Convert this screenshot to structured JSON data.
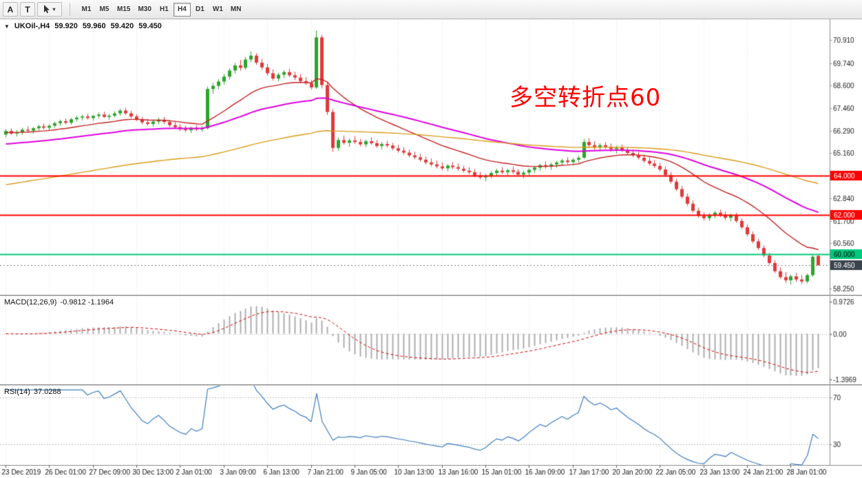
{
  "toolbar": {
    "tools": [
      {
        "id": "arrow",
        "label": "A"
      },
      {
        "id": "text",
        "label": "T"
      },
      {
        "id": "cursor",
        "label": ""
      }
    ],
    "timeframes": [
      "M1",
      "M5",
      "M15",
      "M30",
      "H1",
      "H4",
      "D1",
      "W1",
      "MN"
    ],
    "active_timeframe": "H4"
  },
  "chart": {
    "symbol": "UKOil-,H4",
    "ohlc": {
      "open": "59.920",
      "high": "59.960",
      "low": "59.420",
      "close": "59.450"
    },
    "annotation": "多空转折点60",
    "colors": {
      "bull": "#2CA52C",
      "bear": "#E03A3A",
      "ma_fast": "#C02020",
      "ma_mid": "#DD00DD",
      "ma_slow": "#D89B18",
      "grid": "#E3E3E3",
      "axis_text": "#1A1A1A",
      "current_line": "#777777"
    },
    "price_axis": {
      "range": [
        57.94,
        71.97
      ],
      "labels": [
        "70.910",
        "69.740",
        "68.600",
        "67.460",
        "66.290",
        "65.160",
        "62.840",
        "61.700",
        "60.560",
        "58.250"
      ],
      "hlines": [
        {
          "value": 64.0,
          "label": "64.000",
          "color": "#FF0000",
          "text": "#FFFFFF"
        },
        {
          "value": 62.0,
          "label": "62.000",
          "color": "#FF0000",
          "text": "#FFFFFF"
        },
        {
          "value": 60.0,
          "label": "60.000",
          "color": "#00C87D",
          "text": "#000000"
        }
      ],
      "current": {
        "value": 59.45,
        "label": "59.450",
        "color": "#39434E",
        "text": "#FFFFFF"
      }
    }
  },
  "chart_data": {
    "type": "candlestick",
    "symbol": "UKOil-",
    "timeframe": "H4",
    "title": "UKOil- H4 candlestick chart with MACD(12,26,9) and RSI(14) subwindows",
    "y_range": [
      57.94,
      71.97
    ],
    "moving_averages": [
      {
        "name": "fast-ma",
        "period": 21,
        "seed": 66.2,
        "color_key": "ma_fast",
        "width": 1.4
      },
      {
        "name": "mid-ma",
        "period": 55,
        "seed": 65.6,
        "color_key": "ma_mid",
        "width": 2
      },
      {
        "name": "slow-ma",
        "period": 120,
        "seed": 63.5,
        "color_key": "ma_slow",
        "width": 1.4
      }
    ],
    "candles": [
      [
        66.1,
        66.38,
        65.95,
        66.28
      ],
      [
        66.28,
        66.42,
        66.08,
        66.15
      ],
      [
        66.15,
        66.32,
        66.0,
        66.22
      ],
      [
        66.22,
        66.45,
        66.1,
        66.35
      ],
      [
        66.35,
        66.52,
        66.2,
        66.3
      ],
      [
        66.3,
        66.48,
        66.15,
        66.42
      ],
      [
        66.42,
        66.6,
        66.3,
        66.52
      ],
      [
        66.52,
        66.66,
        66.35,
        66.45
      ],
      [
        66.45,
        66.62,
        66.32,
        66.55
      ],
      [
        66.55,
        66.76,
        66.44,
        66.68
      ],
      [
        66.68,
        66.86,
        66.55,
        66.78
      ],
      [
        66.78,
        66.92,
        66.62,
        66.7
      ],
      [
        66.7,
        66.95,
        66.6,
        66.88
      ],
      [
        66.88,
        67.06,
        66.76,
        66.96
      ],
      [
        66.96,
        67.12,
        66.82,
        67.02
      ],
      [
        67.02,
        67.16,
        66.86,
        66.94
      ],
      [
        66.94,
        67.1,
        66.8,
        67.05
      ],
      [
        67.05,
        67.22,
        66.92,
        67.12
      ],
      [
        67.12,
        67.26,
        66.95,
        67.0
      ],
      [
        67.0,
        67.15,
        66.85,
        67.06
      ],
      [
        67.06,
        67.28,
        66.96,
        67.18
      ],
      [
        67.18,
        67.42,
        67.06,
        67.32
      ],
      [
        67.32,
        67.46,
        67.1,
        67.18
      ],
      [
        67.18,
        67.32,
        66.94,
        67.02
      ],
      [
        67.02,
        67.14,
        66.78,
        66.88
      ],
      [
        66.88,
        67.0,
        66.62,
        66.72
      ],
      [
        66.72,
        66.9,
        66.55,
        66.64
      ],
      [
        66.64,
        66.86,
        66.5,
        66.76
      ],
      [
        66.76,
        66.96,
        66.62,
        66.86
      ],
      [
        66.86,
        67.0,
        66.64,
        66.74
      ],
      [
        66.74,
        66.85,
        66.48,
        66.58
      ],
      [
        66.58,
        66.74,
        66.38,
        66.48
      ],
      [
        66.48,
        66.64,
        66.28,
        66.38
      ],
      [
        66.38,
        66.55,
        66.22,
        66.32
      ],
      [
        66.32,
        66.5,
        66.18,
        66.44
      ],
      [
        66.44,
        66.58,
        66.28,
        66.36
      ],
      [
        66.36,
        66.54,
        66.24,
        66.42
      ],
      [
        66.42,
        68.55,
        66.36,
        68.42
      ],
      [
        68.42,
        68.72,
        68.18,
        68.58
      ],
      [
        68.58,
        68.92,
        68.4,
        68.8
      ],
      [
        68.8,
        69.18,
        68.64,
        69.05
      ],
      [
        69.05,
        69.48,
        68.9,
        69.36
      ],
      [
        69.36,
        69.74,
        69.2,
        69.62
      ],
      [
        69.62,
        69.9,
        69.35,
        69.5
      ],
      [
        69.5,
        70.05,
        69.4,
        69.92
      ],
      [
        69.92,
        70.34,
        69.78,
        70.12
      ],
      [
        70.12,
        70.25,
        69.65,
        69.76
      ],
      [
        69.76,
        69.95,
        69.4,
        69.52
      ],
      [
        69.52,
        69.7,
        69.1,
        69.22
      ],
      [
        69.22,
        69.42,
        68.85,
        68.95
      ],
      [
        68.95,
        69.25,
        68.8,
        69.15
      ],
      [
        69.15,
        69.38,
        68.98,
        69.28
      ],
      [
        69.28,
        69.45,
        69.02,
        69.12
      ],
      [
        69.12,
        69.3,
        68.88,
        69.0
      ],
      [
        69.0,
        69.18,
        68.72,
        68.82
      ],
      [
        68.82,
        69.02,
        68.62,
        68.72
      ],
      [
        68.72,
        68.88,
        68.4,
        68.5
      ],
      [
        68.5,
        71.4,
        68.42,
        71.05
      ],
      [
        71.05,
        71.18,
        68.45,
        68.62
      ],
      [
        68.62,
        68.8,
        67.1,
        67.25
      ],
      [
        67.25,
        67.4,
        65.22,
        65.42
      ],
      [
        65.42,
        65.95,
        65.28,
        65.82
      ],
      [
        65.82,
        66.05,
        65.58,
        65.68
      ],
      [
        65.68,
        65.9,
        65.48,
        65.8
      ],
      [
        65.8,
        66.02,
        65.62,
        65.72
      ],
      [
        65.72,
        65.88,
        65.5,
        65.6
      ],
      [
        65.6,
        65.85,
        65.45,
        65.76
      ],
      [
        65.76,
        65.95,
        65.58,
        65.66
      ],
      [
        65.66,
        65.82,
        65.42,
        65.52
      ],
      [
        65.52,
        65.72,
        65.34,
        65.62
      ],
      [
        65.62,
        65.78,
        65.44,
        65.54
      ],
      [
        65.54,
        65.68,
        65.3,
        65.4
      ],
      [
        65.4,
        65.58,
        65.18,
        65.28
      ],
      [
        65.28,
        65.46,
        65.08,
        65.18
      ],
      [
        65.18,
        65.34,
        64.94,
        65.04
      ],
      [
        65.04,
        65.22,
        64.84,
        64.94
      ],
      [
        64.94,
        65.12,
        64.72,
        64.82
      ],
      [
        64.82,
        64.98,
        64.58,
        64.68
      ],
      [
        64.68,
        64.88,
        64.48,
        64.58
      ],
      [
        64.58,
        64.78,
        64.38,
        64.48
      ],
      [
        64.48,
        64.68,
        64.28,
        64.38
      ],
      [
        64.38,
        64.6,
        64.22,
        64.52
      ],
      [
        64.52,
        64.7,
        64.34,
        64.44
      ],
      [
        64.44,
        64.62,
        64.26,
        64.36
      ],
      [
        64.36,
        64.52,
        64.16,
        64.26
      ],
      [
        64.26,
        64.44,
        64.08,
        64.18
      ],
      [
        64.18,
        64.34,
        63.92,
        64.02
      ],
      [
        64.02,
        64.2,
        63.82,
        63.92
      ],
      [
        63.92,
        64.1,
        63.72,
        64.0
      ],
      [
        64.0,
        64.24,
        63.88,
        64.14
      ],
      [
        64.14,
        64.36,
        64.0,
        64.26
      ],
      [
        64.26,
        64.44,
        64.08,
        64.18
      ],
      [
        64.18,
        64.36,
        63.98,
        64.28
      ],
      [
        64.28,
        64.46,
        64.1,
        64.2
      ],
      [
        64.2,
        64.34,
        63.96,
        64.06
      ],
      [
        64.06,
        64.26,
        63.88,
        64.16
      ],
      [
        64.16,
        64.38,
        64.02,
        64.3
      ],
      [
        64.3,
        64.5,
        64.14,
        64.42
      ],
      [
        64.42,
        64.62,
        64.26,
        64.54
      ],
      [
        64.54,
        64.72,
        64.36,
        64.46
      ],
      [
        64.46,
        64.66,
        64.3,
        64.58
      ],
      [
        64.58,
        64.76,
        64.4,
        64.68
      ],
      [
        64.68,
        64.88,
        64.52,
        64.78
      ],
      [
        64.78,
        64.94,
        64.58,
        64.7
      ],
      [
        64.7,
        64.9,
        64.54,
        64.82
      ],
      [
        64.82,
        65.02,
        64.66,
        64.92
      ],
      [
        64.92,
        65.88,
        64.86,
        65.72
      ],
      [
        65.72,
        65.92,
        65.42,
        65.56
      ],
      [
        65.56,
        65.76,
        65.32,
        65.46
      ],
      [
        65.46,
        65.66,
        65.26,
        65.56
      ],
      [
        65.56,
        65.72,
        65.36,
        65.48
      ],
      [
        65.48,
        65.64,
        65.24,
        65.36
      ],
      [
        65.36,
        65.54,
        65.14,
        65.44
      ],
      [
        65.44,
        65.6,
        65.2,
        65.3
      ],
      [
        65.3,
        65.46,
        65.06,
        65.16
      ],
      [
        65.16,
        65.34,
        64.94,
        65.04
      ],
      [
        65.04,
        65.22,
        64.82,
        64.92
      ],
      [
        64.92,
        65.08,
        64.66,
        64.76
      ],
      [
        64.76,
        64.94,
        64.52,
        64.62
      ],
      [
        64.62,
        64.8,
        64.4,
        64.5
      ],
      [
        64.5,
        64.66,
        64.22,
        64.32
      ],
      [
        64.32,
        64.48,
        63.94,
        64.04
      ],
      [
        64.04,
        64.2,
        63.6,
        63.7
      ],
      [
        63.7,
        63.86,
        63.22,
        63.32
      ],
      [
        63.32,
        63.48,
        62.84,
        62.94
      ],
      [
        62.94,
        63.1,
        62.48,
        62.58
      ],
      [
        62.58,
        62.74,
        62.12,
        62.22
      ],
      [
        62.22,
        62.38,
        61.86,
        61.96
      ],
      [
        61.96,
        62.14,
        61.72,
        61.84
      ],
      [
        61.84,
        62.1,
        61.7,
        62.0
      ],
      [
        62.0,
        62.22,
        61.84,
        62.12
      ],
      [
        62.12,
        62.28,
        61.9,
        62.02
      ],
      [
        62.02,
        62.18,
        61.74,
        61.86
      ],
      [
        61.86,
        62.08,
        61.68,
        61.98
      ],
      [
        61.98,
        62.12,
        61.6,
        61.7
      ],
      [
        61.7,
        61.84,
        61.28,
        61.38
      ],
      [
        61.38,
        61.52,
        60.92,
        61.02
      ],
      [
        61.02,
        61.16,
        60.56,
        60.66
      ],
      [
        60.66,
        60.8,
        60.22,
        60.32
      ],
      [
        60.32,
        60.46,
        59.84,
        59.94
      ],
      [
        59.94,
        60.08,
        59.46,
        59.56
      ],
      [
        59.56,
        59.7,
        59.04,
        59.14
      ],
      [
        59.14,
        59.34,
        58.74,
        58.84
      ],
      [
        58.84,
        59.1,
        58.54,
        58.68
      ],
      [
        58.68,
        58.96,
        58.46,
        58.88
      ],
      [
        58.88,
        59.06,
        58.6,
        58.72
      ],
      [
        58.72,
        58.94,
        58.48,
        58.62
      ],
      [
        58.62,
        59.02,
        58.52,
        58.94
      ],
      [
        58.94,
        59.96,
        58.86,
        59.88
      ],
      [
        59.92,
        59.96,
        59.42,
        59.45
      ]
    ]
  },
  "macd": {
    "name": "MACD(12,26,9)",
    "values": "-0.9812 -1.1964",
    "params": {
      "fast": 12,
      "slow": 26,
      "signal": 9
    },
    "axis_labels": [
      {
        "value": 0.9726,
        "label": "0.9726"
      },
      {
        "value": 0,
        "label": "0.00"
      },
      {
        "value": -1.3969,
        "label": "-1.3969"
      }
    ],
    "range": [
      1.15,
      -1.55
    ],
    "colors": {
      "histogram": "#ACACAC",
      "signal": "#D00000"
    }
  },
  "rsi": {
    "name": "RSI(14)",
    "value": "37.0288",
    "period": 14,
    "levels": [
      {
        "value": 70,
        "label": "70"
      },
      {
        "value": 30,
        "label": "30"
      }
    ],
    "range": [
      80,
      12
    ],
    "color": "#3B7BBF"
  },
  "time_axis": {
    "tick_every": 8,
    "labels": [
      "23 Dec 2019",
      "26 Dec 01:00",
      "27 Dec 09:00",
      "30 Dec 13:00",
      "2 Jan 01:00",
      "3 Jan 09:00",
      "6 Jan 13:00",
      "7 Jan 21:00",
      "9 Jan 05:00",
      "10 Jan 13:00",
      "13 Jan 16:00",
      "15 Jan 01:00",
      "16 Jan 09:00",
      "17 Jan 17:00",
      "20 Jan 20:00",
      "22 Jan 05:00",
      "23 Jan 13:00",
      "24 Jan 21:00",
      "28 Jan 01:00"
    ]
  }
}
